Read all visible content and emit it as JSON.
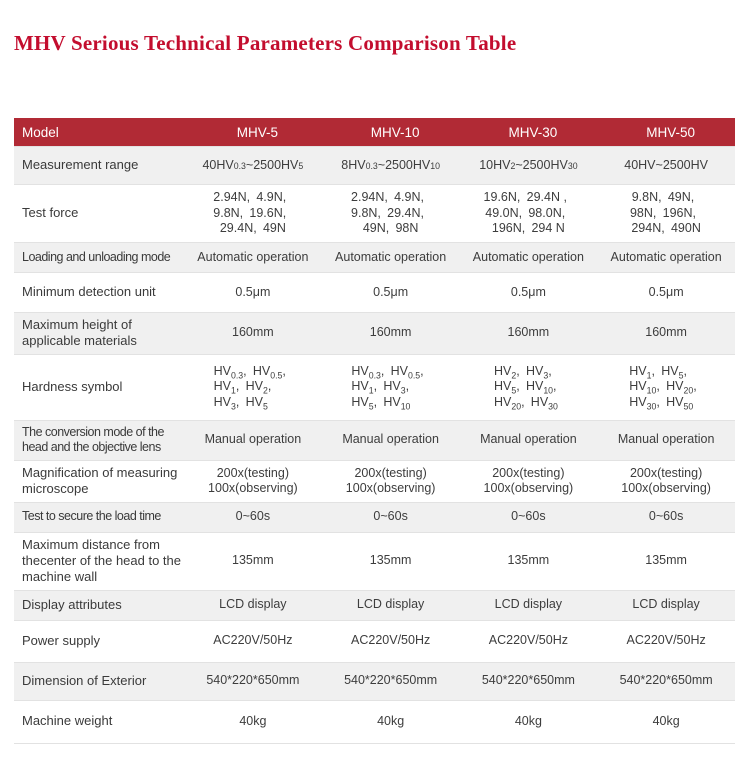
{
  "title": "MHV Serious Technical Parameters Comparison Table",
  "colors": {
    "title_red": "#c30d2e",
    "header_red": "#b12a35",
    "row_alt_gray": "#f0f0f0",
    "border_gray": "#e2e2e2",
    "header_text": "#ffffff",
    "body_text": "#3d3d3d"
  },
  "table": {
    "header": [
      "Model",
      "MHV-5",
      "MHV-10",
      "MHV-30",
      "MHV-50"
    ],
    "rows": [
      {
        "label": "Measurement range",
        "values": [
          "40HV0.3~2500HV5",
          "8HV0.3~2500HV10",
          "10HV2~2500HV30",
          "40HV~2500HV"
        ]
      },
      {
        "label": "Test force",
        "values": [
          "2.94N、4.9N、\n9.8N、19.6N、\n29.4N、49N",
          "2.94N、4.9N、\n9.8N、29.4N、\n49N、98N",
          "19.6N、29.4N 、\n49.0N、98.0N、\n196N、294 N",
          "9.8N、49N、\n98N、196N、\n294N、490N"
        ]
      },
      {
        "label": "Loading and unloading mode",
        "values": [
          "Automatic operation",
          "Automatic operation",
          "Automatic operation",
          "Automatic operation"
        ]
      },
      {
        "label": "Minimum detection unit",
        "values": [
          "0.5μm",
          "0.5μm",
          "0.5μm",
          "0.5μm"
        ]
      },
      {
        "label": "Maximum height of applicable materials",
        "values": [
          "160mm",
          "160mm",
          "160mm",
          "160mm"
        ]
      },
      {
        "label": "Hardness symbol",
        "values": [
          "HV0.3、HV0.5、\nHV1、HV2、\nHV3、HV5",
          "HV0.3、HV0.5、\nHV1、HV3、\nHV5、HV10",
          "HV2、HV3、\nHV5、HV10、\nHV20、HV30",
          "HV1、HV5、\nHV10、HV20、\nHV30、HV50"
        ]
      },
      {
        "label": "The conversion mode of the head and the objective lens",
        "values": [
          "Manual operation",
          "Manual operation",
          "Manual operation",
          "Manual operation"
        ]
      },
      {
        "label": "Magnification of measuring microscope",
        "values": [
          "200x(testing)\n100x(observing)",
          "200x(testing)\n100x(observing)",
          "200x(testing)\n100x(observing)",
          "200x(testing)\n100x(observing)"
        ]
      },
      {
        "label": "Test to secure the load time",
        "values": [
          "0~60s",
          "0~60s",
          "0~60s",
          "0~60s"
        ]
      },
      {
        "label": "Maximum distance from thecenter of the head to the machine wall",
        "values": [
          "135mm",
          "135mm",
          "135mm",
          "135mm"
        ]
      },
      {
        "label": "Display attributes",
        "values": [
          "LCD display",
          "LCD display",
          "LCD display",
          "LCD display"
        ]
      },
      {
        "label": "Power supply",
        "values": [
          "AC220V/50Hz",
          "AC220V/50Hz",
          "AC220V/50Hz",
          "AC220V/50Hz"
        ]
      },
      {
        "label": "Dimension of Exterior",
        "values": [
          "540*220*650mm",
          "540*220*650mm",
          "540*220*650mm",
          "540*220*650mm"
        ]
      },
      {
        "label": "Machine weight",
        "values": [
          "40kg",
          "40kg",
          "40kg",
          "40kg"
        ]
      }
    ]
  }
}
